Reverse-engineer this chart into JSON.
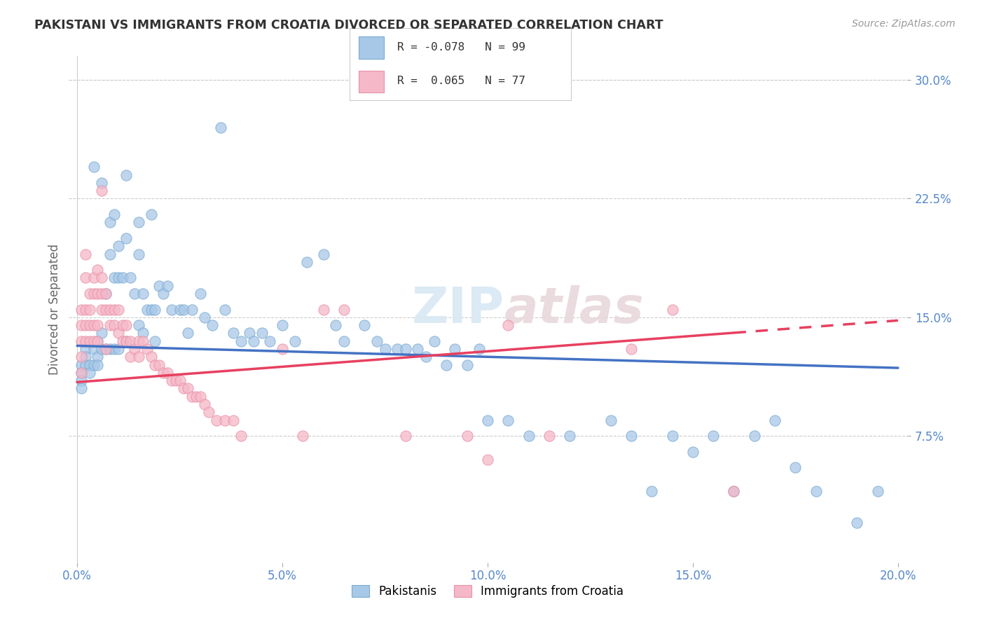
{
  "title": "PAKISTANI VS IMMIGRANTS FROM CROATIA DIVORCED OR SEPARATED CORRELATION CHART",
  "source": "Source: ZipAtlas.com",
  "xlabel_ticks": [
    "0.0%",
    "5.0%",
    "10.0%",
    "15.0%",
    "20.0%"
  ],
  "xlabel_tick_vals": [
    0.0,
    0.05,
    0.1,
    0.15,
    0.2
  ],
  "ylabel_ticks": [
    "30.0%",
    "22.5%",
    "15.0%",
    "7.5%"
  ],
  "ylabel_tick_vals": [
    0.3,
    0.225,
    0.15,
    0.075
  ],
  "xlim": [
    -0.002,
    0.202
  ],
  "ylim": [
    -0.005,
    0.315
  ],
  "blue_R": -0.078,
  "blue_N": 99,
  "pink_R": 0.065,
  "pink_N": 77,
  "blue_color": "#A8C8E8",
  "pink_color": "#F5B8C8",
  "blue_edge_color": "#7AAAD0",
  "pink_edge_color": "#E890A8",
  "blue_line_color": "#4472C4",
  "pink_line_color": "#E84060",
  "watermark_color": "#E0E8F0",
  "ylabel": "Divorced or Separated",
  "legend_label_blue": "Pakistanis",
  "legend_label_pink": "Immigrants from Croatia",
  "blue_line_start_y": 0.132,
  "blue_line_end_y": 0.118,
  "pink_line_start_y": 0.109,
  "pink_line_end_y": 0.148,
  "blue_scatter_x": [
    0.001,
    0.001,
    0.001,
    0.001,
    0.002,
    0.002,
    0.002,
    0.003,
    0.003,
    0.004,
    0.004,
    0.005,
    0.005,
    0.005,
    0.006,
    0.006,
    0.007,
    0.007,
    0.008,
    0.008,
    0.009,
    0.009,
    0.01,
    0.01,
    0.01,
    0.011,
    0.012,
    0.012,
    0.013,
    0.014,
    0.015,
    0.015,
    0.016,
    0.016,
    0.017,
    0.018,
    0.019,
    0.019,
    0.02,
    0.021,
    0.022,
    0.023,
    0.025,
    0.026,
    0.027,
    0.028,
    0.03,
    0.031,
    0.033,
    0.035,
    0.036,
    0.038,
    0.04,
    0.042,
    0.043,
    0.045,
    0.047,
    0.05,
    0.053,
    0.056,
    0.06,
    0.063,
    0.065,
    0.07,
    0.073,
    0.075,
    0.078,
    0.08,
    0.083,
    0.085,
    0.087,
    0.09,
    0.092,
    0.095,
    0.098,
    0.1,
    0.105,
    0.11,
    0.12,
    0.13,
    0.135,
    0.14,
    0.145,
    0.15,
    0.155,
    0.16,
    0.165,
    0.17,
    0.175,
    0.18,
    0.19,
    0.195,
    0.004,
    0.006,
    0.008,
    0.009,
    0.012,
    0.015,
    0.018
  ],
  "blue_scatter_y": [
    0.12,
    0.115,
    0.11,
    0.105,
    0.13,
    0.125,
    0.12,
    0.12,
    0.115,
    0.13,
    0.12,
    0.135,
    0.125,
    0.12,
    0.14,
    0.13,
    0.165,
    0.13,
    0.19,
    0.13,
    0.175,
    0.13,
    0.195,
    0.175,
    0.13,
    0.175,
    0.2,
    0.135,
    0.175,
    0.165,
    0.19,
    0.145,
    0.165,
    0.14,
    0.155,
    0.155,
    0.155,
    0.135,
    0.17,
    0.165,
    0.17,
    0.155,
    0.155,
    0.155,
    0.14,
    0.155,
    0.165,
    0.15,
    0.145,
    0.27,
    0.155,
    0.14,
    0.135,
    0.14,
    0.135,
    0.14,
    0.135,
    0.145,
    0.135,
    0.185,
    0.19,
    0.145,
    0.135,
    0.145,
    0.135,
    0.13,
    0.13,
    0.13,
    0.13,
    0.125,
    0.135,
    0.12,
    0.13,
    0.12,
    0.13,
    0.085,
    0.085,
    0.075,
    0.075,
    0.085,
    0.075,
    0.04,
    0.075,
    0.065,
    0.075,
    0.04,
    0.075,
    0.085,
    0.055,
    0.04,
    0.02,
    0.04,
    0.245,
    0.235,
    0.21,
    0.215,
    0.24,
    0.21,
    0.215
  ],
  "pink_scatter_x": [
    0.001,
    0.001,
    0.001,
    0.001,
    0.001,
    0.002,
    0.002,
    0.002,
    0.002,
    0.002,
    0.003,
    0.003,
    0.003,
    0.003,
    0.004,
    0.004,
    0.004,
    0.004,
    0.005,
    0.005,
    0.005,
    0.005,
    0.006,
    0.006,
    0.006,
    0.007,
    0.007,
    0.007,
    0.008,
    0.008,
    0.009,
    0.009,
    0.01,
    0.01,
    0.011,
    0.011,
    0.012,
    0.012,
    0.013,
    0.013,
    0.014,
    0.015,
    0.015,
    0.016,
    0.017,
    0.018,
    0.019,
    0.02,
    0.021,
    0.022,
    0.023,
    0.024,
    0.025,
    0.026,
    0.027,
    0.028,
    0.029,
    0.03,
    0.031,
    0.032,
    0.034,
    0.036,
    0.038,
    0.04,
    0.05,
    0.055,
    0.06,
    0.065,
    0.08,
    0.095,
    0.1,
    0.105,
    0.115,
    0.135,
    0.145,
    0.16,
    0.006
  ],
  "pink_scatter_y": [
    0.155,
    0.145,
    0.135,
    0.125,
    0.115,
    0.19,
    0.175,
    0.155,
    0.145,
    0.135,
    0.165,
    0.155,
    0.145,
    0.135,
    0.175,
    0.165,
    0.145,
    0.135,
    0.18,
    0.165,
    0.145,
    0.135,
    0.175,
    0.165,
    0.155,
    0.165,
    0.155,
    0.13,
    0.155,
    0.145,
    0.155,
    0.145,
    0.155,
    0.14,
    0.145,
    0.135,
    0.145,
    0.135,
    0.135,
    0.125,
    0.13,
    0.135,
    0.125,
    0.135,
    0.13,
    0.125,
    0.12,
    0.12,
    0.115,
    0.115,
    0.11,
    0.11,
    0.11,
    0.105,
    0.105,
    0.1,
    0.1,
    0.1,
    0.095,
    0.09,
    0.085,
    0.085,
    0.085,
    0.075,
    0.13,
    0.075,
    0.155,
    0.155,
    0.075,
    0.075,
    0.06,
    0.145,
    0.075,
    0.13,
    0.155,
    0.04,
    0.23
  ]
}
